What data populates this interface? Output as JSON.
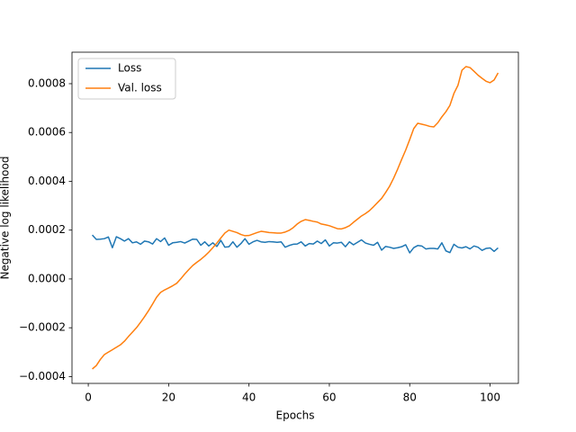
{
  "chart_data": {
    "type": "line",
    "xlabel": "Epochs",
    "ylabel": "Negative log likelihood",
    "x": [
      1,
      2,
      3,
      4,
      5,
      6,
      7,
      8,
      9,
      10,
      11,
      12,
      13,
      14,
      15,
      16,
      17,
      18,
      19,
      20,
      21,
      22,
      23,
      24,
      25,
      26,
      27,
      28,
      29,
      30,
      31,
      32,
      33,
      34,
      35,
      36,
      37,
      38,
      39,
      40,
      41,
      42,
      43,
      44,
      45,
      46,
      47,
      48,
      49,
      50,
      51,
      52,
      53,
      54,
      55,
      56,
      57,
      58,
      59,
      60,
      61,
      62,
      63,
      64,
      65,
      66,
      67,
      68,
      69,
      70,
      71,
      72,
      73,
      74,
      75,
      76,
      77,
      78,
      79,
      80,
      81,
      82,
      83,
      84,
      85,
      86,
      87,
      88,
      89,
      90,
      91,
      92,
      93,
      94,
      95,
      96,
      97,
      98,
      99,
      100,
      101,
      102
    ],
    "series": [
      {
        "name": "Loss",
        "color": "#1f77b4",
        "values": [
          0.00018,
          0.000162,
          0.000163,
          0.000165,
          0.000172,
          0.000128,
          0.000173,
          0.000165,
          0.000155,
          0.000165,
          0.000148,
          0.000152,
          0.000142,
          0.000155,
          0.000152,
          0.000143,
          0.000165,
          0.000153,
          0.000168,
          0.000138,
          0.000148,
          0.00015,
          0.000153,
          0.000147,
          0.000155,
          0.000163,
          0.000162,
          0.000138,
          0.000152,
          0.000135,
          0.000148,
          0.000133,
          0.000158,
          0.00013,
          0.000132,
          0.000152,
          0.00013,
          0.000145,
          0.000165,
          0.000142,
          0.000152,
          0.000158,
          0.000152,
          0.00015,
          0.000153,
          0.000152,
          0.00015,
          0.000152,
          0.00013,
          0.000137,
          0.000142,
          0.000143,
          0.000152,
          0.000135,
          0.000145,
          0.000143,
          0.000155,
          0.000145,
          0.00016,
          0.000135,
          0.000148,
          0.000147,
          0.00015,
          0.000132,
          0.000152,
          0.00014,
          0.00015,
          0.00016,
          0.000147,
          0.000142,
          0.000138,
          0.00015,
          0.000118,
          0.000133,
          0.00013,
          0.000125,
          0.000128,
          0.000132,
          0.00014,
          0.000107,
          0.000128,
          0.000137,
          0.000135,
          0.000123,
          0.000125,
          0.000125,
          0.000123,
          0.000148,
          0.000115,
          0.000108,
          0.000142,
          0.00013,
          0.000127,
          0.000132,
          0.000123,
          0.000135,
          0.00013,
          0.000117,
          0.000125,
          0.000127,
          0.000113,
          0.000127
        ]
      },
      {
        "name": "Val. loss",
        "color": "#ff7f0e",
        "values": [
          -0.000369,
          -0.000355,
          -0.00033,
          -0.00031,
          -0.0003,
          -0.00029,
          -0.00028,
          -0.00027,
          -0.000255,
          -0.000236,
          -0.000218,
          -0.0002,
          -0.000178,
          -0.000155,
          -0.00013,
          -0.000103,
          -7.5e-05,
          -5.5e-05,
          -4.5e-05,
          -3.7e-05,
          -2.8e-05,
          -1.8e-05,
          0.0,
          2e-05,
          3.8e-05,
          5.5e-05,
          6.8e-05,
          8e-05,
          9.4e-05,
          0.00011,
          0.000128,
          0.000147,
          0.000168,
          0.000188,
          0.0002,
          0.000195,
          0.00019,
          0.000182,
          0.000177,
          0.000178,
          0.000184,
          0.00019,
          0.000195,
          0.000193,
          0.00019,
          0.000189,
          0.000188,
          0.000188,
          0.000192,
          0.000199,
          0.00021,
          0.000225,
          0.000236,
          0.000243,
          0.00024,
          0.000236,
          0.000233,
          0.000225,
          0.000222,
          0.000218,
          0.000212,
          0.000206,
          0.000205,
          0.00021,
          0.000218,
          0.000232,
          0.000245,
          0.000258,
          0.000268,
          0.00028,
          0.000296,
          0.000313,
          0.00033,
          0.000354,
          0.00038,
          0.000413,
          0.00045,
          0.00049,
          0.000528,
          0.000571,
          0.000616,
          0.000638,
          0.000634,
          0.00063,
          0.000625,
          0.000623,
          0.00064,
          0.000664,
          0.000685,
          0.000711,
          0.00076,
          0.000793,
          0.000855,
          0.00087,
          0.000866,
          0.000851,
          0.000835,
          0.000822,
          0.00081,
          0.000804,
          0.000815,
          0.000844
        ]
      }
    ],
    "xlim": [
      -4.05,
      107.05
    ],
    "ylim": [
      -0.000428,
      0.000929
    ],
    "xticks": [
      0,
      20,
      40,
      60,
      80,
      100
    ],
    "yticks": [
      {
        "value": -0.0004,
        "label": "−0.0004"
      },
      {
        "value": -0.0002,
        "label": "−0.0002"
      },
      {
        "value": 0,
        "label": "0.0000"
      },
      {
        "value": 0.0002,
        "label": "0.0002"
      },
      {
        "value": 0.0004,
        "label": "0.0004"
      },
      {
        "value": 0.0006,
        "label": "0.0006"
      },
      {
        "value": 0.0008,
        "label": "0.0008"
      }
    ],
    "legend": "upper left",
    "grid": false
  }
}
